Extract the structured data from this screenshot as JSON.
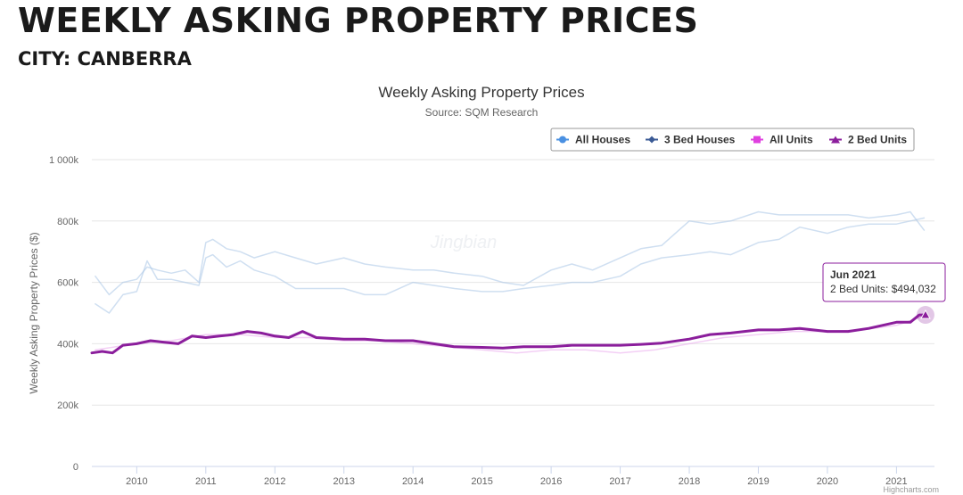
{
  "header": {
    "title": "WEEKLY ASKING PROPERTY PRICES",
    "subtitle": "CITY: CANBERRA"
  },
  "chart_data": {
    "type": "line",
    "title": "Weekly Asking Property Prices",
    "subtitle": "Source: SQM Research",
    "xlabel": "",
    "ylabel": "Weekly Asking Property Prices ($)",
    "x_ticks": [
      "2010",
      "2011",
      "2012",
      "2013",
      "2014",
      "2015",
      "2016",
      "2017",
      "2018",
      "2019",
      "2020",
      "2021"
    ],
    "x_range": [
      2009.35,
      2021.55
    ],
    "ylim": [
      0,
      1000000
    ],
    "y_ticks": [
      0,
      200000,
      400000,
      600000,
      800000,
      1000000
    ],
    "y_tick_labels": [
      "0",
      "200k",
      "400k",
      "600k",
      "800k",
      "1 000k"
    ],
    "grid": true,
    "legend_position": "top-right",
    "series": [
      {
        "name": "All Houses",
        "color": "#4a90e2",
        "marker": "circle",
        "faded": true,
        "x": [
          2009.4,
          2009.6,
          2009.8,
          2010.0,
          2010.15,
          2010.3,
          2010.5,
          2010.7,
          2010.9,
          2011.0,
          2011.1,
          2011.3,
          2011.5,
          2011.7,
          2012.0,
          2012.3,
          2012.6,
          2013.0,
          2013.3,
          2013.6,
          2014.0,
          2014.3,
          2014.6,
          2015.0,
          2015.3,
          2015.6,
          2016.0,
          2016.3,
          2016.6,
          2017.0,
          2017.3,
          2017.6,
          2018.0,
          2018.3,
          2018.6,
          2019.0,
          2019.3,
          2019.6,
          2020.0,
          2020.3,
          2020.6,
          2021.0,
          2021.2,
          2021.4
        ],
        "y": [
          620000,
          560000,
          600000,
          610000,
          650000,
          640000,
          630000,
          640000,
          600000,
          730000,
          740000,
          710000,
          700000,
          680000,
          700000,
          680000,
          660000,
          680000,
          660000,
          650000,
          640000,
          640000,
          630000,
          620000,
          600000,
          590000,
          640000,
          660000,
          640000,
          680000,
          710000,
          720000,
          800000,
          790000,
          800000,
          830000,
          820000,
          820000,
          820000,
          820000,
          810000,
          820000,
          830000,
          770000
        ]
      },
      {
        "name": "3 Bed Houses",
        "color": "#3a5a95",
        "marker": "diamond",
        "faded": true,
        "x": [
          2009.4,
          2009.6,
          2009.8,
          2010.0,
          2010.15,
          2010.3,
          2010.5,
          2010.7,
          2010.9,
          2011.0,
          2011.1,
          2011.3,
          2011.5,
          2011.7,
          2012.0,
          2012.3,
          2012.6,
          2013.0,
          2013.3,
          2013.6,
          2014.0,
          2014.3,
          2014.6,
          2015.0,
          2015.3,
          2015.6,
          2016.0,
          2016.3,
          2016.6,
          2017.0,
          2017.3,
          2017.6,
          2018.0,
          2018.3,
          2018.6,
          2019.0,
          2019.3,
          2019.6,
          2020.0,
          2020.3,
          2020.6,
          2021.0,
          2021.2,
          2021.4
        ],
        "y": [
          530000,
          500000,
          560000,
          570000,
          670000,
          610000,
          610000,
          600000,
          590000,
          680000,
          690000,
          650000,
          670000,
          640000,
          620000,
          580000,
          580000,
          580000,
          560000,
          560000,
          600000,
          590000,
          580000,
          570000,
          570000,
          580000,
          590000,
          600000,
          600000,
          620000,
          660000,
          680000,
          690000,
          700000,
          690000,
          730000,
          740000,
          780000,
          760000,
          780000,
          790000,
          790000,
          800000,
          810000
        ]
      },
      {
        "name": "All Units",
        "color": "#e040e0",
        "marker": "square",
        "faded": true,
        "x": [
          2009.4,
          2009.7,
          2010.0,
          2010.5,
          2011.0,
          2011.5,
          2012.0,
          2012.5,
          2013.0,
          2013.5,
          2014.0,
          2014.5,
          2015.0,
          2015.5,
          2016.0,
          2016.5,
          2017.0,
          2017.5,
          2018.0,
          2018.5,
          2019.0,
          2019.5,
          2020.0,
          2020.5,
          2021.0,
          2021.4
        ],
        "y": [
          380000,
          390000,
          400000,
          410000,
          430000,
          430000,
          420000,
          420000,
          410000,
          410000,
          400000,
          390000,
          380000,
          370000,
          380000,
          380000,
          370000,
          380000,
          400000,
          420000,
          430000,
          440000,
          440000,
          445000,
          460000,
          490000
        ]
      },
      {
        "name": "2 Bed Units",
        "color": "#8b1e9c",
        "marker": "triangle",
        "faded": false,
        "x": [
          2009.35,
          2009.5,
          2009.65,
          2009.8,
          2010.0,
          2010.2,
          2010.4,
          2010.6,
          2010.8,
          2011.0,
          2011.2,
          2011.4,
          2011.6,
          2011.8,
          2012.0,
          2012.2,
          2012.4,
          2012.6,
          2013.0,
          2013.3,
          2013.6,
          2014.0,
          2014.3,
          2014.6,
          2015.0,
          2015.3,
          2015.6,
          2016.0,
          2016.3,
          2016.6,
          2017.0,
          2017.3,
          2017.6,
          2018.0,
          2018.3,
          2018.6,
          2019.0,
          2019.3,
          2019.6,
          2020.0,
          2020.3,
          2020.6,
          2021.0,
          2021.2,
          2021.33,
          2021.42
        ],
        "y": [
          370000,
          375000,
          370000,
          395000,
          400000,
          410000,
          405000,
          400000,
          425000,
          420000,
          425000,
          430000,
          440000,
          435000,
          425000,
          420000,
          440000,
          420000,
          415000,
          415000,
          410000,
          410000,
          400000,
          390000,
          388000,
          386000,
          390000,
          390000,
          395000,
          395000,
          395000,
          398000,
          402000,
          415000,
          430000,
          435000,
          445000,
          445000,
          450000,
          440000,
          440000,
          450000,
          470000,
          470000,
          494032,
          494032
        ]
      }
    ],
    "tooltip": {
      "title": "Jun 2021",
      "label": "2 Bed Units: $494,032",
      "series": "2 Bed Units",
      "x": 2021.42,
      "y": 494032
    },
    "watermark": "Jingbian",
    "credits": "Highcharts.com"
  }
}
